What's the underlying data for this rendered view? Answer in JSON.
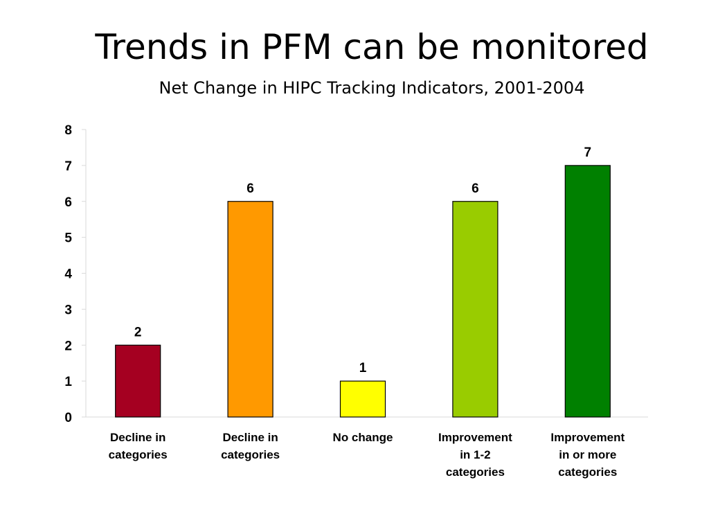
{
  "slide": {
    "title": "Trends in PFM can be monitored",
    "subtitle": "Net Change in HIPC Tracking Indicators, 2001-2004"
  },
  "chart_data": {
    "type": "bar",
    "title": "Net Change in HIPC Tracking Indicators, 2001-2004",
    "xlabel": "",
    "ylabel": "",
    "ylim": [
      0,
      8
    ],
    "yticks": [
      0,
      1,
      2,
      3,
      4,
      5,
      6,
      7,
      8
    ],
    "grid": false,
    "legend": "none",
    "categories": [
      [
        "Decline in",
        "categories"
      ],
      [
        "Decline in",
        "categories"
      ],
      [
        "No change"
      ],
      [
        "Improvement",
        "in 1-2",
        "categories"
      ],
      [
        "Improvement",
        "in    or more",
        "categories"
      ]
    ],
    "values": [
      2,
      6,
      1,
      6,
      7
    ],
    "data_labels": [
      "2",
      "6",
      "1",
      "6",
      "7"
    ],
    "colors": [
      "#A50021",
      "#FF9900",
      "#FFFF00",
      "#99CC00",
      "#008000"
    ],
    "bar_outline_color": "#000000",
    "axis_color": "#D9D9D9"
  }
}
